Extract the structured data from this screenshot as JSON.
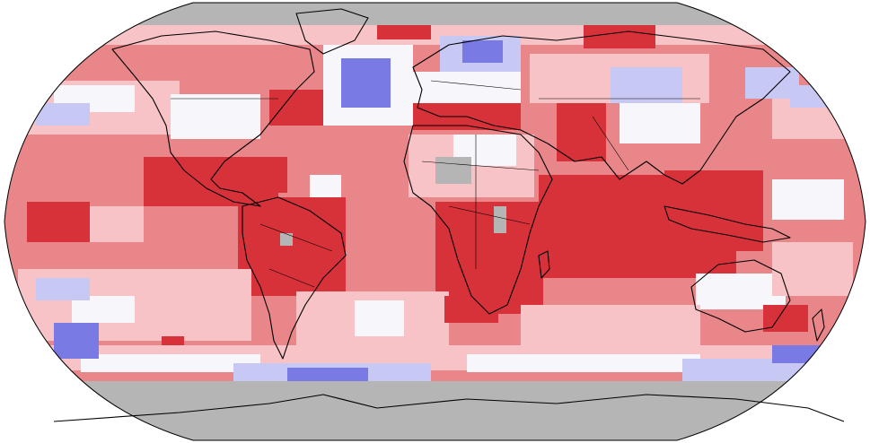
{
  "map": {
    "projection": "Robinson",
    "palette": {
      "much_warmer": "#d7323a",
      "warmer": "#e8868a",
      "slightly_warmer": "#f7c3c6",
      "near_average": "#f7f7fb",
      "slightly_cooler": "#c8c8f4",
      "cooler": "#7a7ae4",
      "no_data": "#b5b5b5",
      "ocean_default": "#ef9a9e",
      "outline": "#000000"
    },
    "regions": [
      {
        "name": "north-atlantic-cool-anomaly",
        "category": "cooler"
      },
      {
        "name": "scandinavia-cool-anomaly",
        "category": "cooler"
      },
      {
        "name": "siberia-cool-anomaly",
        "category": "slightly_cooler"
      },
      {
        "name": "southern-ocean-cool-band",
        "category": "slightly_cooler"
      },
      {
        "name": "tropical-pacific-warm-band",
        "category": "much_warmer"
      },
      {
        "name": "indian-ocean-warm",
        "category": "much_warmer"
      },
      {
        "name": "africa-warm",
        "category": "much_warmer"
      },
      {
        "name": "south-america-warm",
        "category": "much_warmer"
      },
      {
        "name": "antarctica-no-data",
        "category": "no_data"
      },
      {
        "name": "arctic-no-data",
        "category": "no_data"
      }
    ]
  }
}
